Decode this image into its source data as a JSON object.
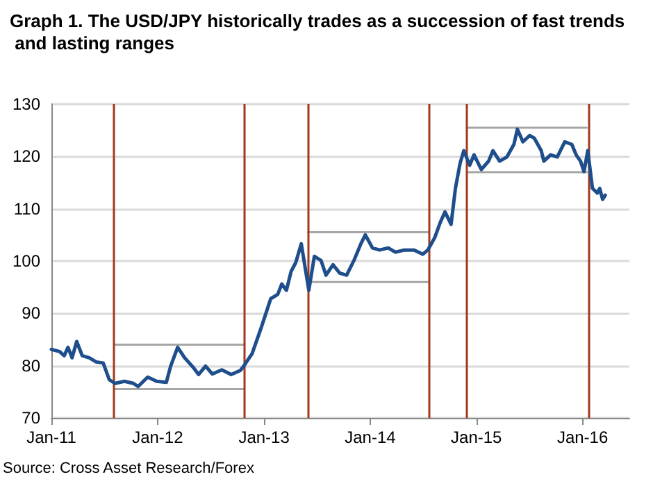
{
  "chart_data": {
    "type": "line",
    "title": "Graph 1. The USD/JPY historically trades as a succession of fast trends and lasting ranges",
    "annotations": [
      "Source: Cross Asset Research/Forex"
    ],
    "xlim": [
      "2011-01-01",
      "2016-06-10"
    ],
    "xticks": [
      {
        "value": "2011-01-01",
        "label": "Jan-11"
      },
      {
        "value": "2012-01-01",
        "label": "Jan-12"
      },
      {
        "value": "2013-01-01",
        "label": "Jan-13"
      },
      {
        "value": "2014-01-01",
        "label": "Jan-14"
      },
      {
        "value": "2015-01-01",
        "label": "Jan-15"
      },
      {
        "value": "2016-01-01",
        "label": "Jan-16"
      }
    ],
    "ylim": [
      70,
      130
    ],
    "yticks": [
      70,
      80,
      90,
      100,
      110,
      120,
      130
    ],
    "grid": "y",
    "marker": "none",
    "line_style": "solid",
    "series": [
      {
        "color": "#1f4e8c",
        "x": [
          "2011-01-01",
          "2011-01-29",
          "2011-02-14",
          "2011-02-27",
          "2011-03-13",
          "2011-03-29",
          "2011-04-17",
          "2011-05-11",
          "2011-06-04",
          "2011-06-28",
          "2011-07-19",
          "2011-08-08",
          "2011-09-09",
          "2011-10-10",
          "2011-10-26",
          "2011-11-28",
          "2011-12-29",
          "2012-01-31",
          "2012-02-15",
          "2012-03-10",
          "2012-04-03",
          "2012-05-05",
          "2012-05-21",
          "2012-06-14",
          "2012-07-07",
          "2012-08-09",
          "2012-09-10",
          "2012-10-12",
          "2012-10-28",
          "2012-11-21",
          "2012-12-22",
          "2013-01-24",
          "2013-02-17",
          "2013-03-03",
          "2013-03-19",
          "2013-04-04",
          "2013-04-20",
          "2013-05-09",
          "2013-06-04",
          "2013-06-23",
          "2013-07-16",
          "2013-08-02",
          "2013-08-26",
          "2013-09-18",
          "2013-10-12",
          "2013-11-06",
          "2013-11-30",
          "2013-12-15",
          "2014-01-09",
          "2014-02-02",
          "2014-03-04",
          "2014-03-28",
          "2014-04-29",
          "2014-06-01",
          "2014-07-01",
          "2014-07-18",
          "2014-08-11",
          "2014-08-30",
          "2014-09-15",
          "2014-10-06",
          "2014-10-21",
          "2014-11-06",
          "2014-11-19",
          "2014-12-09",
          "2014-12-24",
          "2015-01-18",
          "2015-02-12",
          "2015-02-27",
          "2015-03-22",
          "2015-04-16",
          "2015-05-10",
          "2015-05-22",
          "2015-06-10",
          "2015-07-03",
          "2015-07-19",
          "2015-08-12",
          "2015-08-21",
          "2015-09-13",
          "2015-10-06",
          "2015-11-01",
          "2015-11-25",
          "2015-12-10",
          "2015-12-25",
          "2016-01-06",
          "2016-01-19",
          "2016-02-04",
          "2016-02-21",
          "2016-02-29",
          "2016-03-10",
          "2016-03-19"
        ],
        "values": [
          83.1,
          82.7,
          81.9,
          83.5,
          81.5,
          84.6,
          81.9,
          81.5,
          80.7,
          80.5,
          77.3,
          76.6,
          77.0,
          76.6,
          76.0,
          77.8,
          77.0,
          76.8,
          79.9,
          83.5,
          81.5,
          79.5,
          78.3,
          79.9,
          78.4,
          79.2,
          78.3,
          79.1,
          80.3,
          82.3,
          87.2,
          92.8,
          93.6,
          95.6,
          94.4,
          98.0,
          99.7,
          103.3,
          94.4,
          100.9,
          100.1,
          97.3,
          99.3,
          97.7,
          97.3,
          100.1,
          103.3,
          105.0,
          102.5,
          102.1,
          102.5,
          101.7,
          102.1,
          102.1,
          101.3,
          102.1,
          104.5,
          107.4,
          109.4,
          107.0,
          113.9,
          118.7,
          121.1,
          118.3,
          120.3,
          117.5,
          119.1,
          121.1,
          119.1,
          119.9,
          122.3,
          125.2,
          122.8,
          124.0,
          123.5,
          121.1,
          119.1,
          120.3,
          119.9,
          122.8,
          122.3,
          120.3,
          119.1,
          117.1,
          121.1,
          113.9,
          113.0,
          113.9,
          111.8,
          112.6
        ]
      },
      {
        "color": "#a6a6a6",
        "x": [
          "2011-08-05",
          "2012-10-25"
        ],
        "values": [
          84,
          84
        ]
      },
      {
        "color": "#a6a6a6",
        "x": [
          "2011-08-05",
          "2012-10-25"
        ],
        "values": [
          75.5,
          75.5
        ]
      },
      {
        "color": "#a6a6a6",
        "x": [
          "2013-06-01",
          "2014-07-20"
        ],
        "values": [
          105.5,
          105.5
        ]
      },
      {
        "color": "#a6a6a6",
        "x": [
          "2013-06-01",
          "2014-07-20"
        ],
        "values": [
          96,
          96
        ]
      },
      {
        "color": "#a6a6a6",
        "x": [
          "2014-12-05",
          "2016-01-15"
        ],
        "values": [
          125.5,
          125.5
        ]
      },
      {
        "color": "#a6a6a6",
        "x": [
          "2014-12-05",
          "2016-01-15"
        ],
        "values": [
          117,
          117
        ]
      }
    ],
    "ref_lines": [
      {
        "axis": "x",
        "value": "2011-08-05",
        "color": "#a0391e"
      },
      {
        "axis": "x",
        "value": "2012-10-25",
        "color": "#a0391e"
      },
      {
        "axis": "x",
        "value": "2013-06-01",
        "color": "#a0391e"
      },
      {
        "axis": "x",
        "value": "2014-07-22",
        "color": "#a0391e"
      },
      {
        "axis": "x",
        "value": "2014-11-28",
        "color": "#a0391e"
      },
      {
        "axis": "x",
        "value": "2016-01-20",
        "color": "#a0391e"
      }
    ]
  }
}
